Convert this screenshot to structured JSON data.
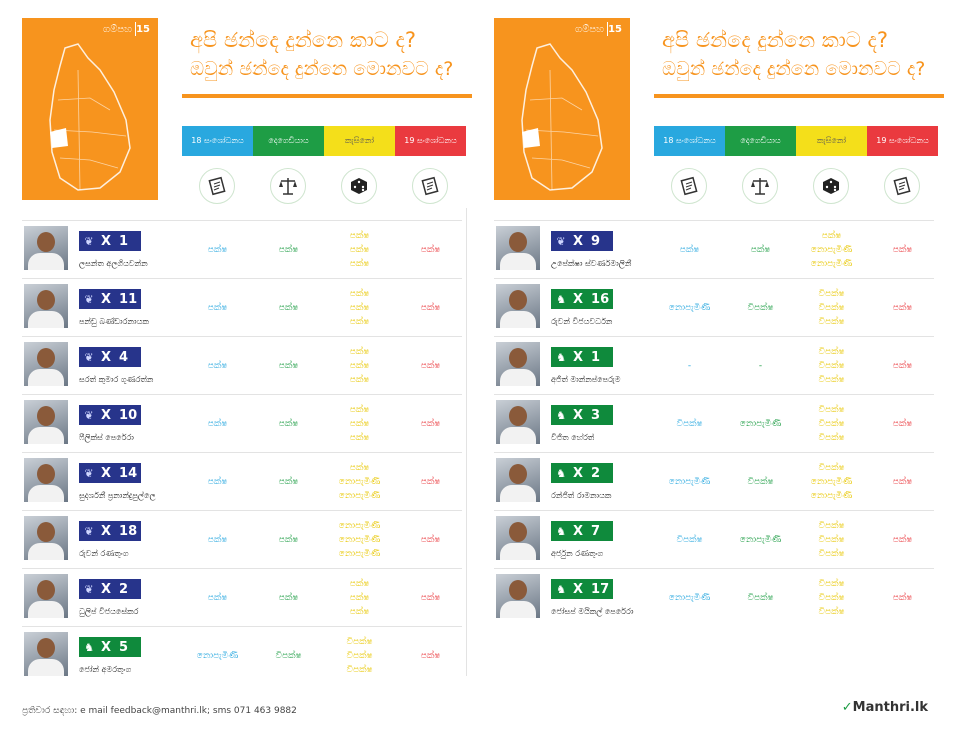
{
  "district": "ගම්පහ",
  "district_number": "15",
  "title_line1": "අපි ඡන්දෙ දුන්නෙ කාට ද?",
  "title_line2": "ඔවුන් ඡන්දෙ දුන්නෙ මොනවට ද?",
  "categories": [
    "18 සංශෝධනය",
    "දෙගෙඩියාය",
    "කැසිනෝ",
    "19 සංශෝධනය"
  ],
  "category_icons": [
    "document-icon",
    "scales-icon",
    "dice-icon",
    "document-icon"
  ],
  "colors": {
    "orange": "#f7941e",
    "blue": "#29a8df",
    "green": "#1e9d45",
    "yellow": "#f4df1a",
    "red": "#ea3a3f",
    "party_blue": "#27348b",
    "party_green": "#0f8a3c"
  },
  "left": [
    {
      "name": "ලසන්ත අලගියවන්න",
      "party": "blue",
      "num": "1",
      "v1": [
        "පක්ෂ"
      ],
      "v2": [
        "පක්ෂ"
      ],
      "v3": [
        "පක්ෂ",
        "පක්ෂ",
        "පක්ෂ"
      ],
      "v4": [
        "පක්ෂ"
      ]
    },
    {
      "name": "පන්ඩු බණ්ඩාරනායක",
      "party": "blue",
      "num": "11",
      "v1": [
        "පක්ෂ"
      ],
      "v2": [
        "පක්ෂ"
      ],
      "v3": [
        "පක්ෂ",
        "පක්ෂ",
        "පක්ෂ"
      ],
      "v4": [
        "පක්ෂ"
      ]
    },
    {
      "name": "සරත් කුමාර ගුණරත්න",
      "party": "blue",
      "num": "4",
      "v1": [
        "පක්ෂ"
      ],
      "v2": [
        "පක්ෂ"
      ],
      "v3": [
        "පක්ෂ",
        "පක්ෂ",
        "පක්ෂ"
      ],
      "v4": [
        "පක්ෂ"
      ]
    },
    {
      "name": "ෆීලික්ස් පෙරේරා",
      "party": "blue",
      "num": "10",
      "v1": [
        "පක්ෂ"
      ],
      "v2": [
        "පක්ෂ"
      ],
      "v3": [
        "පක්ෂ",
        "පක්ෂ",
        "පක්ෂ"
      ],
      "v4": [
        "පක්ෂ"
      ]
    },
    {
      "name": "සුදර්ශනී ප්‍රනාන්දුපුල්ලෙ",
      "party": "blue",
      "num": "14",
      "v1": [
        "පක්ෂ"
      ],
      "v2": [
        "පක්ෂ"
      ],
      "v3": [
        "පක්ෂ",
        "නොපැමිණි",
        "නොපැමිණි"
      ],
      "v4": [
        "පක්ෂ"
      ]
    },
    {
      "name": "රුවන් රණතුංග",
      "party": "blue",
      "num": "18",
      "v1": [
        "පක්ෂ"
      ],
      "v2": [
        "පක්ෂ"
      ],
      "v3": [
        "නොපැමිණි",
        "නොපැමිණි",
        "නොපැමිණි"
      ],
      "v4": [
        "පක්ෂ"
      ]
    },
    {
      "name": "ධුලිප් විජයසේකර",
      "party": "blue",
      "num": "2",
      "v1": [
        "පක්ෂ"
      ],
      "v2": [
        "පක්ෂ"
      ],
      "v3": [
        "පක්ෂ",
        "පක්ෂ",
        "පක්ෂ"
      ],
      "v4": [
        "පක්ෂ"
      ]
    },
    {
      "name": "ජෝන් අමරතුංග",
      "party": "green",
      "num": "5",
      "v1": [
        "නොපැමිණි"
      ],
      "v2": [
        "විපක්ෂ"
      ],
      "v3": [
        "විපක්ෂ",
        "විපක්ෂ",
        "විපක්ෂ"
      ],
      "v4": [
        "පක්ෂ"
      ]
    }
  ],
  "right": [
    {
      "name": "උපේක්ෂා ස්වර්ණමාලිනී",
      "party": "blue",
      "num": "9",
      "v1": [
        "පක්ෂ"
      ],
      "v2": [
        "පක්ෂ"
      ],
      "v3": [
        "පක්ෂ",
        "නොපැමිණි",
        "නොපැමිණි"
      ],
      "v4": [
        "පක්ෂ"
      ]
    },
    {
      "name": "රුවන් විජයවර්ධන",
      "party": "green",
      "num": "16",
      "v1": [
        "නොපැමිණි"
      ],
      "v2": [
        "විපක්ෂ"
      ],
      "v3": [
        "විපක්ෂ",
        "විපක්ෂ",
        "විපක්ෂ"
      ],
      "v4": [
        "පක්ෂ"
      ]
    },
    {
      "name": "අජිත් මාන්නප්පෙරුම",
      "party": "green",
      "num": "1",
      "v1": [
        "-"
      ],
      "v2": [
        "-"
      ],
      "v3": [
        "විපක්ෂ",
        "විපක්ෂ",
        "විපක්ෂ"
      ],
      "v4": [
        "පක්ෂ"
      ]
    },
    {
      "name": "විජිත හේරත්",
      "party": "green",
      "num": "3",
      "v1": [
        "විපක්ෂ"
      ],
      "v2": [
        "නොපැමිණි"
      ],
      "v3": [
        "විපක්ෂ",
        "විපක්ෂ",
        "විපක්ෂ"
      ],
      "v4": [
        "පක්ෂ"
      ]
    },
    {
      "name": "රන්ජිත් රාමනායක",
      "party": "green",
      "num": "2",
      "v1": [
        "නොපැමිණි"
      ],
      "v2": [
        "විපක්ෂ"
      ],
      "v3": [
        "විපක්ෂ",
        "නොපැමිණි",
        "නොපැමිණි"
      ],
      "v4": [
        "පක්ෂ"
      ]
    },
    {
      "name": "අර්ජුන රණතුංග",
      "party": "green",
      "num": "7",
      "v1": [
        "විපක්ෂ"
      ],
      "v2": [
        "නොපැමිණි"
      ],
      "v3": [
        "විපක්ෂ",
        "විපක්ෂ",
        "විපක්ෂ"
      ],
      "v4": [
        "පක්ෂ"
      ]
    },
    {
      "name": "ජෝසප් මයිකල් පෙරේරා",
      "party": "green",
      "num": "17",
      "v1": [
        "නොපැමිණි"
      ],
      "v2": [
        "විපක්ෂ"
      ],
      "v3": [
        "විපක්ෂ",
        "විපක්ෂ",
        "විපක්ෂ"
      ],
      "v4": [
        "පක්ෂ"
      ]
    }
  ],
  "footer": "ප්‍රතිචාර සඳහා: e mail feedback@manthri.lk; sms 071 463 9882",
  "logo": "Manthri.lk"
}
